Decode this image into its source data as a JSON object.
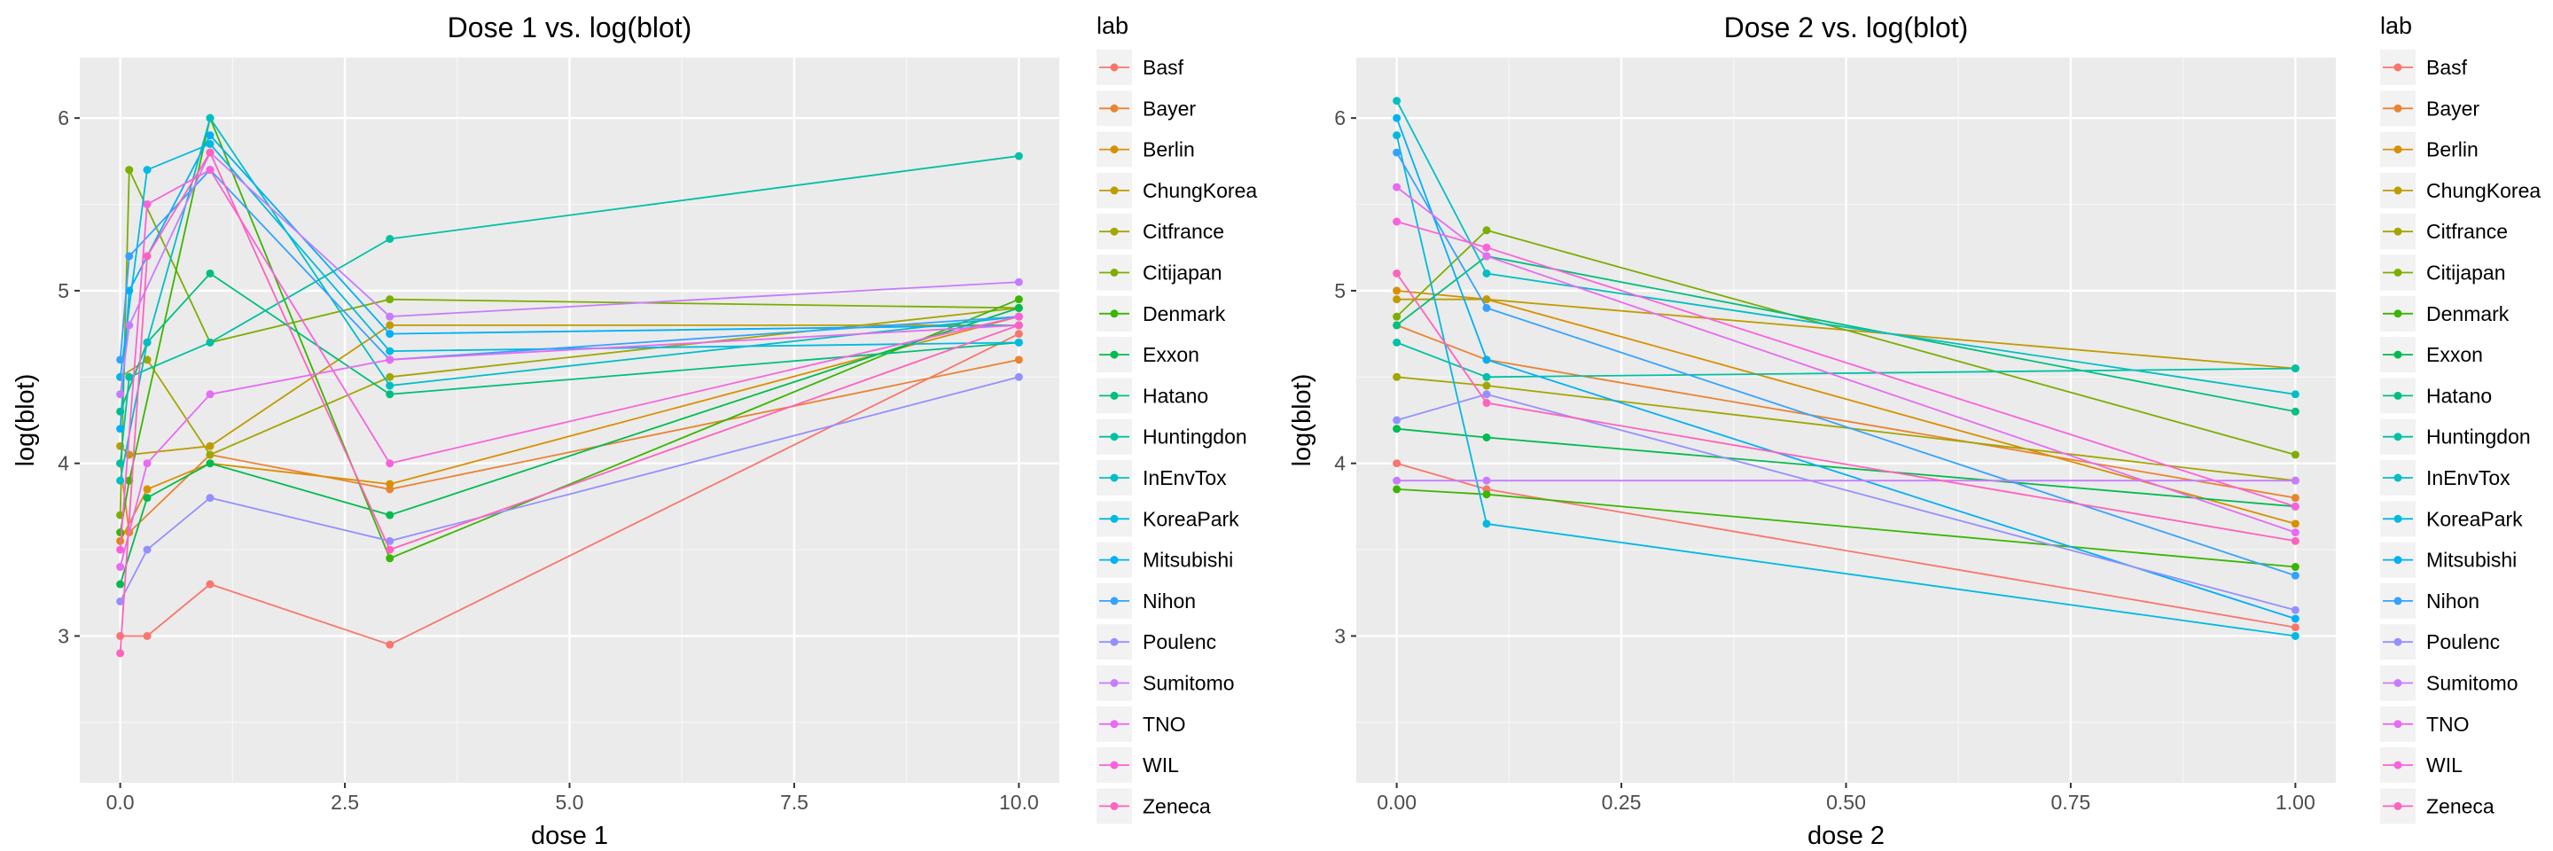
{
  "chart_data": [
    {
      "type": "line",
      "title": "Dose 1 vs. log(blot)",
      "xlabel": "dose 1",
      "ylabel": "log(blot)",
      "xlim": [
        -0.45,
        10.45
      ],
      "ylim": [
        2.15,
        6.35
      ],
      "x_ticks": [
        0,
        2.5,
        5,
        7.5,
        10
      ],
      "x_tick_labels": [
        "0.0",
        "2.5",
        "5.0",
        "7.5",
        "10.0"
      ],
      "y_ticks": [
        3,
        4,
        5,
        6
      ],
      "y_tick_labels": [
        "3",
        "4",
        "5",
        "6"
      ],
      "grid": true,
      "legend_position": "right",
      "legend_title": "lab",
      "series": [
        {
          "name": "Basf",
          "x": [
            0,
            0.3,
            1,
            3,
            10
          ],
          "y": [
            3.0,
            3.0,
            3.3,
            2.95,
            4.75
          ]
        },
        {
          "name": "Bayer",
          "x": [
            0,
            0.1,
            1,
            3,
            10
          ],
          "y": [
            4.0,
            3.6,
            4.05,
            3.85,
            4.6
          ]
        },
        {
          "name": "Berlin",
          "x": [
            0,
            0.3,
            1,
            3,
            10
          ],
          "y": [
            3.55,
            3.85,
            4.0,
            3.88,
            4.85
          ]
        },
        {
          "name": "ChungKorea",
          "x": [
            0,
            0.1,
            1,
            3,
            10
          ],
          "y": [
            4.1,
            4.05,
            4.1,
            4.8,
            4.8
          ]
        },
        {
          "name": "Citfrance",
          "x": [
            0,
            0.3,
            1,
            3,
            10
          ],
          "y": [
            4.5,
            4.6,
            4.05,
            4.5,
            4.9
          ]
        },
        {
          "name": "Citijapan",
          "x": [
            0,
            0.1,
            1,
            3,
            10
          ],
          "y": [
            3.7,
            5.7,
            4.7,
            4.95,
            4.9
          ]
        },
        {
          "name": "Denmark",
          "x": [
            0,
            0.1,
            1,
            3,
            10
          ],
          "y": [
            3.6,
            3.9,
            6.0,
            3.45,
            4.95
          ]
        },
        {
          "name": "Exxon",
          "x": [
            0,
            0.3,
            1,
            3,
            10
          ],
          "y": [
            3.3,
            3.8,
            4.0,
            3.7,
            4.9
          ]
        },
        {
          "name": "Hatano",
          "x": [
            0,
            0.3,
            1,
            3,
            10
          ],
          "y": [
            4.3,
            4.7,
            5.1,
            4.4,
            4.7
          ]
        },
        {
          "name": "Huntingdon",
          "x": [
            0,
            0.1,
            1,
            3,
            10
          ],
          "y": [
            4.0,
            4.5,
            4.7,
            5.3,
            5.78
          ]
        },
        {
          "name": "InEnvTox",
          "x": [
            0,
            0.3,
            1,
            3,
            10
          ],
          "y": [
            3.9,
            4.7,
            6.0,
            4.45,
            4.85
          ]
        },
        {
          "name": "KoreaPark",
          "x": [
            0,
            0.3,
            1,
            3,
            10
          ],
          "y": [
            4.5,
            5.7,
            5.85,
            4.65,
            4.7
          ]
        },
        {
          "name": "Mitsubishi",
          "x": [
            0,
            0.1,
            1,
            3,
            10
          ],
          "y": [
            4.2,
            5.0,
            5.9,
            4.75,
            4.8
          ]
        },
        {
          "name": "Nihon",
          "x": [
            0,
            0.1,
            1,
            3,
            10
          ],
          "y": [
            4.6,
            5.2,
            5.7,
            4.6,
            4.85
          ]
        },
        {
          "name": "Poulenc",
          "x": [
            0,
            0.3,
            1,
            3,
            10
          ],
          "y": [
            3.2,
            3.5,
            3.8,
            3.55,
            4.5
          ]
        },
        {
          "name": "Sumitomo",
          "x": [
            0,
            0.1,
            1,
            3,
            10
          ],
          "y": [
            4.4,
            4.8,
            5.8,
            4.85,
            5.05
          ]
        },
        {
          "name": "TNO",
          "x": [
            0,
            0.3,
            1,
            3,
            10
          ],
          "y": [
            3.4,
            4.0,
            4.4,
            4.6,
            4.8
          ]
        },
        {
          "name": "WIL",
          "x": [
            0,
            0.3,
            1,
            3,
            10
          ],
          "y": [
            3.5,
            5.5,
            5.7,
            4.0,
            4.85
          ]
        },
        {
          "name": "Zeneca",
          "x": [
            0,
            0.3,
            1,
            3,
            10
          ],
          "y": [
            2.9,
            5.2,
            5.8,
            3.5,
            4.8
          ]
        }
      ],
      "colors": [
        "#F8766D",
        "#EA8331",
        "#D89000",
        "#C09B00",
        "#A3A500",
        "#7CAE00",
        "#39B600",
        "#00BB4E",
        "#00BF7D",
        "#00C1A3",
        "#00BFC4",
        "#00BAE0",
        "#00B0F6",
        "#35A2FF",
        "#9590FF",
        "#C77CFF",
        "#E76BF3",
        "#FA62DB",
        "#FF62BC"
      ]
    },
    {
      "type": "line",
      "title": "Dose 2 vs. log(blot)",
      "xlabel": "dose 2",
      "ylabel": "log(blot)",
      "xlim": [
        -0.045,
        1.045
      ],
      "ylim": [
        2.15,
        6.35
      ],
      "x_ticks": [
        0,
        0.25,
        0.5,
        0.75,
        1
      ],
      "x_tick_labels": [
        "0.00",
        "0.25",
        "0.50",
        "0.75",
        "1.00"
      ],
      "y_ticks": [
        3,
        4,
        5,
        6
      ],
      "y_tick_labels": [
        "3",
        "4",
        "5",
        "6"
      ],
      "grid": true,
      "legend_position": "right",
      "legend_title": "lab",
      "series": [
        {
          "name": "Basf",
          "x": [
            0,
            0.1,
            1
          ],
          "y": [
            4.0,
            3.85,
            3.05
          ]
        },
        {
          "name": "Bayer",
          "x": [
            0,
            0.1,
            1
          ],
          "y": [
            4.8,
            4.6,
            3.8
          ]
        },
        {
          "name": "Berlin",
          "x": [
            0,
            0.1,
            1
          ],
          "y": [
            5.0,
            4.95,
            3.65
          ]
        },
        {
          "name": "ChungKorea",
          "x": [
            0,
            0.1,
            1
          ],
          "y": [
            4.95,
            4.95,
            4.55
          ]
        },
        {
          "name": "Citfrance",
          "x": [
            0,
            0.1,
            1
          ],
          "y": [
            4.5,
            4.45,
            3.9
          ]
        },
        {
          "name": "Citijapan",
          "x": [
            0,
            0.1,
            1
          ],
          "y": [
            4.85,
            5.35,
            4.05
          ]
        },
        {
          "name": "Denmark",
          "x": [
            0,
            0.1,
            1
          ],
          "y": [
            3.85,
            3.82,
            3.4
          ]
        },
        {
          "name": "Exxon",
          "x": [
            0,
            0.1,
            1
          ],
          "y": [
            4.2,
            4.15,
            3.75
          ]
        },
        {
          "name": "Hatano",
          "x": [
            0,
            0.1,
            1
          ],
          "y": [
            4.8,
            5.2,
            4.3
          ]
        },
        {
          "name": "Huntingdon",
          "x": [
            0,
            0.1,
            1
          ],
          "y": [
            4.7,
            4.5,
            4.55
          ]
        },
        {
          "name": "InEnvTox",
          "x": [
            0,
            0.1,
            1
          ],
          "y": [
            6.1,
            5.1,
            4.4
          ]
        },
        {
          "name": "KoreaPark",
          "x": [
            0,
            0.1,
            1
          ],
          "y": [
            5.9,
            3.65,
            3.0
          ]
        },
        {
          "name": "Mitsubishi",
          "x": [
            0,
            0.1,
            1
          ],
          "y": [
            6.0,
            4.6,
            3.1
          ]
        },
        {
          "name": "Nihon",
          "x": [
            0,
            0.1,
            1
          ],
          "y": [
            5.8,
            4.9,
            3.35
          ]
        },
        {
          "name": "Poulenc",
          "x": [
            0,
            0.1,
            1
          ],
          "y": [
            4.25,
            4.4,
            3.15
          ]
        },
        {
          "name": "Sumitomo",
          "x": [
            0,
            0.1,
            1
          ],
          "y": [
            3.9,
            3.9,
            3.9
          ]
        },
        {
          "name": "TNO",
          "x": [
            0,
            0.1,
            1
          ],
          "y": [
            5.6,
            5.2,
            3.6
          ]
        },
        {
          "name": "WIL",
          "x": [
            0,
            0.1,
            1
          ],
          "y": [
            5.4,
            5.25,
            3.75
          ]
        },
        {
          "name": "Zeneca",
          "x": [
            0,
            0.1,
            1
          ],
          "y": [
            5.1,
            4.35,
            3.55
          ]
        }
      ],
      "colors": [
        "#F8766D",
        "#EA8331",
        "#D89000",
        "#C09B00",
        "#A3A500",
        "#7CAE00",
        "#39B600",
        "#00BB4E",
        "#00BF7D",
        "#00C1A3",
        "#00BFC4",
        "#00BAE0",
        "#00B0F6",
        "#35A2FF",
        "#9590FF",
        "#C77CFF",
        "#E76BF3",
        "#FA62DB",
        "#FF62BC"
      ]
    }
  ]
}
